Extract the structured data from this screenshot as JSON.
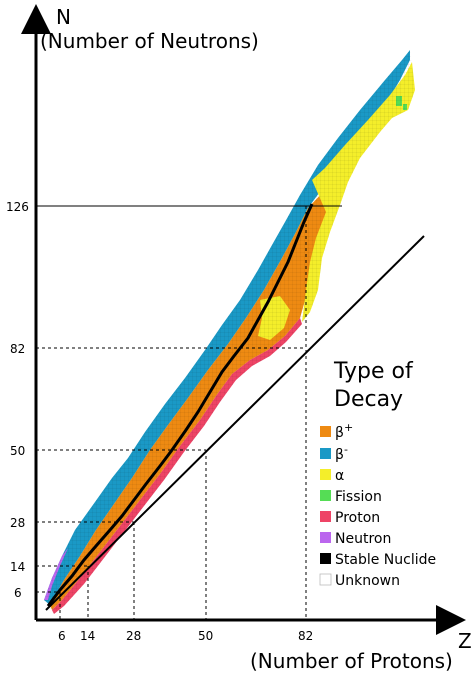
{
  "axes": {
    "y_letter": "N",
    "y_title": "(Number of Neutrons)",
    "x_letter": "Z",
    "x_title": "(Number of Protons)"
  },
  "y_ticks": [
    "126",
    "82",
    "50",
    "28",
    "14",
    "6"
  ],
  "x_ticks": [
    "6",
    "14",
    "28",
    "50",
    "82"
  ],
  "legend": {
    "title_line1": "Type of",
    "title_line2": "Decay",
    "items": [
      {
        "label": "β+",
        "color": "#ee8a12"
      },
      {
        "label": "β-",
        "color": "#1a99c6"
      },
      {
        "label": "α",
        "color": "#f4ee2a"
      },
      {
        "label": "Fission",
        "color": "#55dd55"
      },
      {
        "label": "Proton",
        "color": "#ee4466"
      },
      {
        "label": "Neutron",
        "color": "#bb66ee"
      },
      {
        "label": "Stable Nuclide",
        "color": "#000000"
      },
      {
        "label": "Unknown",
        "color": "#ffffff"
      }
    ]
  },
  "chart_data": {
    "type": "heatmap",
    "x_axis": {
      "letter": "Z",
      "label": "(Number of Protons)",
      "ticks": [
        6,
        14,
        28,
        50,
        82
      ]
    },
    "y_axis": {
      "letter": "N",
      "label": "(Number of Neutrons)",
      "ticks": [
        6,
        14,
        28,
        50,
        82,
        126
      ]
    },
    "magic_numbers": [
      6,
      14,
      28,
      50,
      82,
      126
    ],
    "reference_line": "N = Z",
    "categories": [
      "β+",
      "β-",
      "α",
      "Fission",
      "Proton",
      "Neutron",
      "Stable Nuclide",
      "Unknown"
    ]
  }
}
